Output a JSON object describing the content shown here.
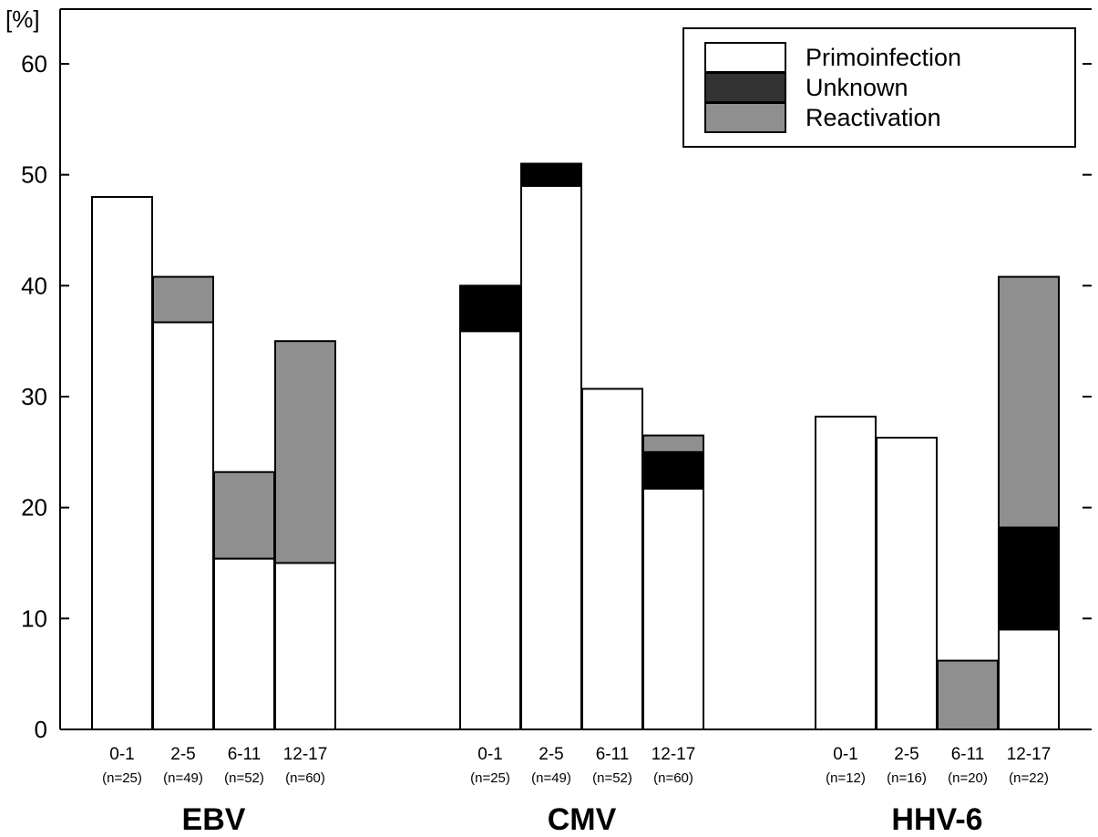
{
  "chart_data": {
    "type": "bar",
    "stacked": true,
    "ylabel": "[%]",
    "ylim": [
      0,
      65
    ],
    "yticks": [
      0,
      10,
      20,
      30,
      40,
      50,
      60
    ],
    "categories": [
      "0-1",
      "2-5",
      "6-11",
      "12-17"
    ],
    "groups": [
      {
        "name": "EBV",
        "n_labels": [
          "(n=25)",
          "(n=49)",
          "(n=52)",
          "(n=60)"
        ]
      },
      {
        "name": "CMV",
        "n_labels": [
          "(n=25)",
          "(n=49)",
          "(n=52)",
          "(n=60)"
        ]
      },
      {
        "name": "HHV-6",
        "n_labels": [
          "(n=12)",
          "(n=16)",
          "(n=20)",
          "(n=22)"
        ]
      }
    ],
    "series": [
      {
        "name": "Primoinfection",
        "color": "#ffffff",
        "values": [
          [
            48,
            36.7,
            15.4,
            15
          ],
          [
            35.9,
            49,
            30.7,
            21.7
          ],
          [
            28.2,
            26.3,
            0,
            9
          ]
        ]
      },
      {
        "name": "Unknown",
        "color": "#000000",
        "values": [
          [
            0,
            0,
            0,
            0
          ],
          [
            4.1,
            2,
            0,
            3.3
          ],
          [
            0,
            0,
            0,
            9.2
          ]
        ]
      },
      {
        "name": "Reactivation",
        "color": "#8f8f8f",
        "values": [
          [
            0,
            4.1,
            7.8,
            20
          ],
          [
            0,
            0,
            0,
            1.5
          ],
          [
            0,
            0,
            6.2,
            22.6
          ]
        ]
      }
    ],
    "legend": {
      "position": "top-right",
      "items": [
        {
          "label": "Primoinfection",
          "color": "#ffffff"
        },
        {
          "label": "Unknown",
          "color": "#333333"
        },
        {
          "label": "Reactivation",
          "color": "#8f8f8f"
        }
      ]
    },
    "grid": false
  }
}
